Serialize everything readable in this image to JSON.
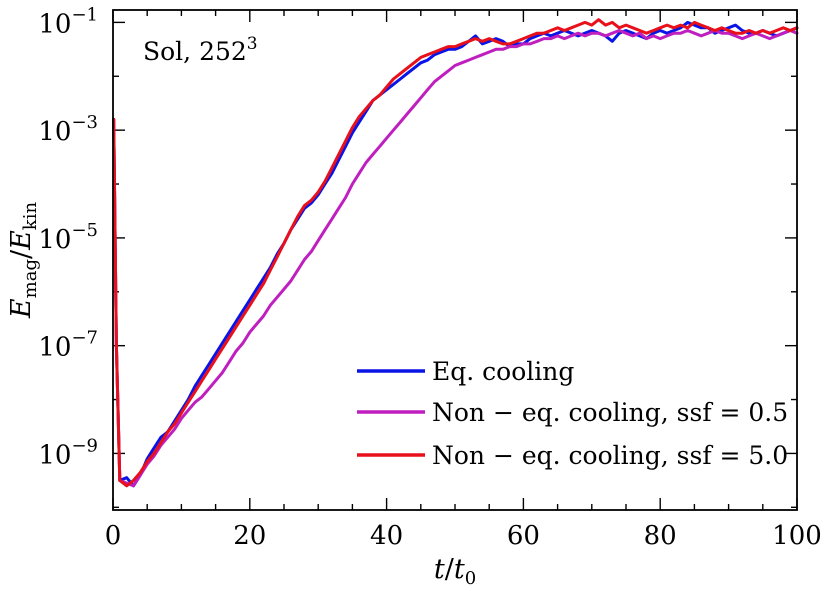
{
  "chart_data": {
    "type": "line",
    "title": "",
    "annotation": {
      "base": "Sol, 252",
      "sup": "3"
    },
    "xlabel": {
      "main": "t",
      "slash": "/",
      "main2": "t",
      "sub2": "0"
    },
    "ylabel": {
      "main": "E",
      "sub": "mag",
      "slash": "/",
      "main2": "E",
      "sub2": "kin"
    },
    "xlim": [
      0,
      100
    ],
    "ylim_log10": [
      -10.05,
      -0.77
    ],
    "yscale": "log",
    "xticks": [
      0,
      20,
      40,
      60,
      80,
      100
    ],
    "xtick_labels": [
      "0",
      "20",
      "40",
      "60",
      "80",
      "100"
    ],
    "yticks_log10": [
      -9,
      -7,
      -5,
      -3,
      -1
    ],
    "ytick_labels": [
      {
        "base": "10",
        "exp": "−9"
      },
      {
        "base": "10",
        "exp": "−7"
      },
      {
        "base": "10",
        "exp": "−5"
      },
      {
        "base": "10",
        "exp": "−3"
      },
      {
        "base": "10",
        "exp": "−1"
      }
    ],
    "legend_position": "lower-right",
    "series": [
      {
        "name": "Eq. cooling",
        "color": "#0a14e6",
        "x": [
          0.1,
          0.5,
          1,
          2,
          3,
          4,
          5,
          6,
          7,
          8,
          9,
          10,
          11,
          12,
          13,
          14,
          15,
          16,
          17,
          18,
          19,
          20,
          21,
          22,
          23,
          24,
          25,
          26,
          27,
          28,
          29,
          30,
          31,
          32,
          33,
          34,
          35,
          36,
          37,
          38,
          39,
          40,
          41,
          42,
          43,
          44,
          45,
          46,
          47,
          48,
          49,
          50,
          51,
          52,
          53,
          54,
          55,
          56,
          57,
          58,
          59,
          60,
          61,
          62,
          63,
          64,
          65,
          66,
          67,
          68,
          69,
          70,
          71,
          72,
          73,
          74,
          75,
          76,
          77,
          78,
          79,
          80,
          81,
          82,
          83,
          84,
          85,
          86,
          87,
          88,
          89,
          90,
          91,
          92,
          93,
          94,
          95,
          96,
          97,
          98,
          99,
          100
        ],
        "log10y": [
          -2.8,
          -7.0,
          -9.5,
          -9.45,
          -9.6,
          -9.4,
          -9.1,
          -8.9,
          -8.7,
          -8.6,
          -8.4,
          -8.2,
          -8.0,
          -7.75,
          -7.55,
          -7.35,
          -7.15,
          -6.95,
          -6.75,
          -6.55,
          -6.35,
          -6.15,
          -5.95,
          -5.75,
          -5.55,
          -5.3,
          -5.1,
          -4.85,
          -4.65,
          -4.45,
          -4.35,
          -4.2,
          -4.0,
          -3.8,
          -3.55,
          -3.3,
          -3.05,
          -2.85,
          -2.65,
          -2.45,
          -2.35,
          -2.25,
          -2.15,
          -2.05,
          -1.95,
          -1.85,
          -1.75,
          -1.7,
          -1.6,
          -1.55,
          -1.5,
          -1.5,
          -1.45,
          -1.35,
          -1.25,
          -1.4,
          -1.35,
          -1.3,
          -1.35,
          -1.45,
          -1.4,
          -1.4,
          -1.3,
          -1.25,
          -1.2,
          -1.25,
          -1.2,
          -1.15,
          -1.2,
          -1.25,
          -1.2,
          -1.15,
          -1.2,
          -1.25,
          -1.35,
          -1.2,
          -1.15,
          -1.2,
          -1.25,
          -1.3,
          -1.2,
          -1.15,
          -1.2,
          -1.15,
          -1.1,
          -1.0,
          -1.05,
          -1.1,
          -1.1,
          -1.2,
          -1.15,
          -1.1,
          -1.05,
          -1.15,
          -1.2,
          -1.2,
          -1.15,
          -1.2,
          -1.25,
          -1.2,
          -1.15,
          -1.1
        ]
      },
      {
        "name": "Non − eq. cooling, ssf = 0.5",
        "color": "#bf1fbf",
        "x": [
          0.1,
          0.5,
          1,
          2,
          3,
          4,
          5,
          6,
          7,
          8,
          9,
          10,
          11,
          12,
          13,
          14,
          15,
          16,
          17,
          18,
          19,
          20,
          21,
          22,
          23,
          24,
          25,
          26,
          27,
          28,
          29,
          30,
          31,
          32,
          33,
          34,
          35,
          36,
          37,
          38,
          39,
          40,
          41,
          42,
          43,
          44,
          45,
          46,
          47,
          48,
          49,
          50,
          51,
          52,
          53,
          54,
          55,
          56,
          57,
          58,
          59,
          60,
          61,
          62,
          63,
          64,
          65,
          66,
          67,
          68,
          69,
          70,
          71,
          72,
          73,
          74,
          75,
          76,
          77,
          78,
          79,
          80,
          81,
          82,
          83,
          84,
          85,
          86,
          87,
          88,
          89,
          90,
          91,
          92,
          93,
          94,
          95,
          96,
          97,
          98,
          99,
          100
        ],
        "log10y": [
          -2.8,
          -7.0,
          -9.5,
          -9.55,
          -9.6,
          -9.4,
          -9.2,
          -9.05,
          -8.85,
          -8.7,
          -8.55,
          -8.35,
          -8.2,
          -8.05,
          -7.95,
          -7.8,
          -7.65,
          -7.5,
          -7.3,
          -7.1,
          -6.95,
          -6.75,
          -6.6,
          -6.45,
          -6.25,
          -6.1,
          -5.95,
          -5.8,
          -5.6,
          -5.4,
          -5.25,
          -5.05,
          -4.85,
          -4.65,
          -4.45,
          -4.25,
          -4.0,
          -3.8,
          -3.6,
          -3.45,
          -3.3,
          -3.15,
          -3.0,
          -2.85,
          -2.7,
          -2.55,
          -2.4,
          -2.25,
          -2.1,
          -2.0,
          -1.9,
          -1.8,
          -1.75,
          -1.7,
          -1.65,
          -1.6,
          -1.55,
          -1.5,
          -1.5,
          -1.45,
          -1.45,
          -1.4,
          -1.4,
          -1.35,
          -1.3,
          -1.3,
          -1.25,
          -1.3,
          -1.25,
          -1.2,
          -1.25,
          -1.2,
          -1.2,
          -1.25,
          -1.2,
          -1.15,
          -1.2,
          -1.25,
          -1.2,
          -1.3,
          -1.25,
          -1.3,
          -1.25,
          -1.2,
          -1.2,
          -1.15,
          -1.2,
          -1.25,
          -1.2,
          -1.15,
          -1.2,
          -1.2,
          -1.25,
          -1.3,
          -1.25,
          -1.2,
          -1.25,
          -1.3,
          -1.25,
          -1.2,
          -1.15,
          -1.2
        ]
      },
      {
        "name": "Non − eq. cooling, ssf = 5.0",
        "color": "#e8101a",
        "x": [
          0.1,
          0.5,
          1,
          2,
          3,
          4,
          5,
          6,
          7,
          8,
          9,
          10,
          11,
          12,
          13,
          14,
          15,
          16,
          17,
          18,
          19,
          20,
          21,
          22,
          23,
          24,
          25,
          26,
          27,
          28,
          29,
          30,
          31,
          32,
          33,
          34,
          35,
          36,
          37,
          38,
          39,
          40,
          41,
          42,
          43,
          44,
          45,
          46,
          47,
          48,
          49,
          50,
          51,
          52,
          53,
          54,
          55,
          56,
          57,
          58,
          59,
          60,
          61,
          62,
          63,
          64,
          65,
          66,
          67,
          68,
          69,
          70,
          71,
          72,
          73,
          74,
          75,
          76,
          77,
          78,
          79,
          80,
          81,
          82,
          83,
          84,
          85,
          86,
          87,
          88,
          89,
          90,
          91,
          92,
          93,
          94,
          95,
          96,
          97,
          98,
          99,
          100
        ],
        "log10y": [
          -2.8,
          -7.0,
          -9.5,
          -9.6,
          -9.5,
          -9.35,
          -9.15,
          -9.0,
          -8.8,
          -8.6,
          -8.45,
          -8.25,
          -8.05,
          -7.85,
          -7.65,
          -7.45,
          -7.25,
          -7.05,
          -6.85,
          -6.65,
          -6.45,
          -6.25,
          -6.05,
          -5.85,
          -5.6,
          -5.35,
          -5.1,
          -4.85,
          -4.6,
          -4.4,
          -4.3,
          -4.15,
          -3.95,
          -3.7,
          -3.45,
          -3.2,
          -2.95,
          -2.75,
          -2.6,
          -2.45,
          -2.35,
          -2.2,
          -2.05,
          -1.95,
          -1.85,
          -1.75,
          -1.65,
          -1.6,
          -1.55,
          -1.5,
          -1.45,
          -1.45,
          -1.4,
          -1.35,
          -1.3,
          -1.35,
          -1.3,
          -1.35,
          -1.4,
          -1.4,
          -1.35,
          -1.3,
          -1.25,
          -1.2,
          -1.2,
          -1.15,
          -1.1,
          -1.15,
          -1.1,
          -1.05,
          -1.0,
          -1.05,
          -0.95,
          -1.05,
          -1.0,
          -1.1,
          -1.05,
          -1.1,
          -1.15,
          -1.2,
          -1.15,
          -1.1,
          -1.05,
          -1.1,
          -1.05,
          -1.1,
          -1.0,
          -1.05,
          -1.1,
          -1.15,
          -1.1,
          -1.15,
          -1.2,
          -1.2,
          -1.15,
          -1.2,
          -1.15,
          -1.2,
          -1.15,
          -1.1,
          -1.15,
          -1.1
        ]
      }
    ]
  }
}
